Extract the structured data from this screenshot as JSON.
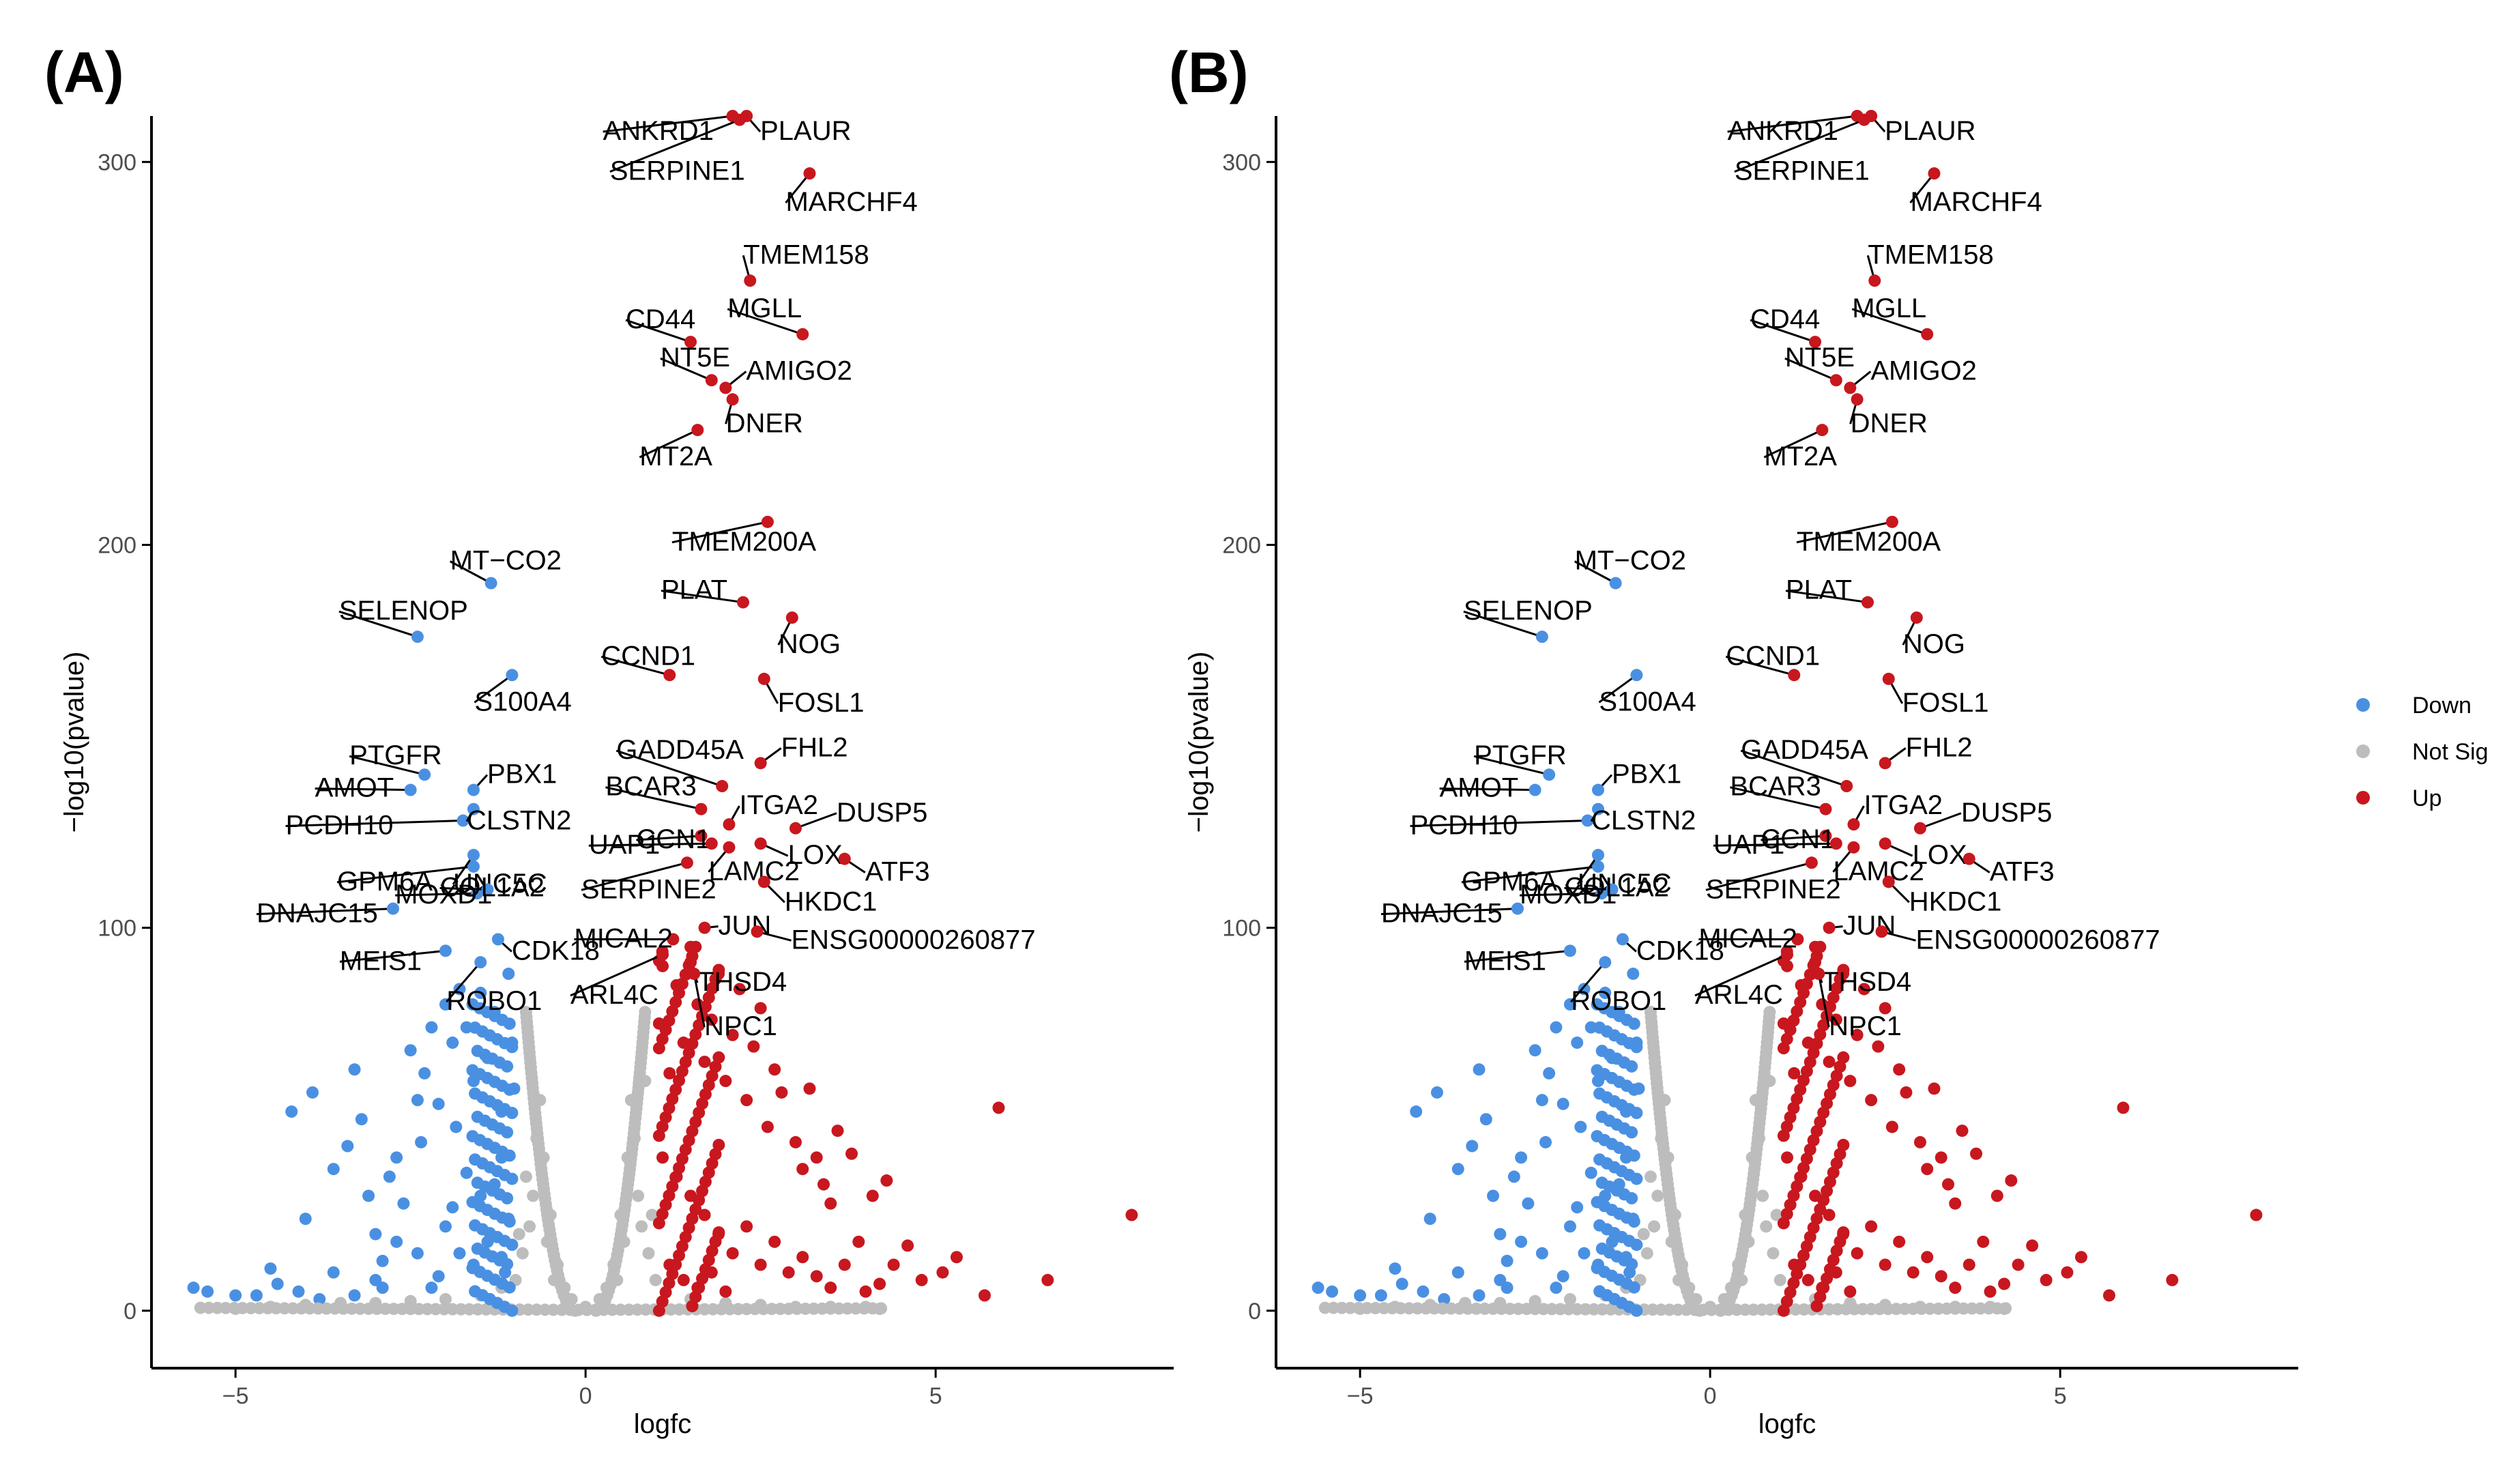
{
  "colors": {
    "down": "#4a90e2",
    "notsig": "#bdbdbd",
    "up": "#c8171e",
    "axis": "#000000",
    "tick_text": "#4d4d4d"
  },
  "legend": {
    "items": [
      {
        "label": "Down",
        "color": "#4a90e2"
      },
      {
        "label": "Not Sig",
        "color": "#bdbdbd"
      },
      {
        "label": "Up",
        "color": "#c8171e"
      }
    ]
  },
  "chart_data": [
    {
      "type": "scatter",
      "panel_label": "(A)",
      "xlabel": "logfc",
      "ylabel": "−log10(pvalue)",
      "xlim": [
        -6.2,
        8.4
      ],
      "ylim": [
        -15,
        312
      ],
      "xticks": [
        -5,
        0,
        5
      ],
      "xtick_labels": [
        "−5",
        "0",
        "5"
      ],
      "yticks": [
        0,
        100,
        200,
        300
      ],
      "ytick_labels": [
        "0",
        "100",
        "200",
        "300"
      ],
      "grid": false,
      "legend_position": "right",
      "categories": [
        "Down",
        "Not Sig",
        "Up"
      ],
      "labeled_points": [
        {
          "gene": "ANKRD1",
          "x": 2.1,
          "y": 312,
          "group": "Up"
        },
        {
          "gene": "PLAUR",
          "x": 2.3,
          "y": 312,
          "group": "Up"
        },
        {
          "gene": "SERPINE1",
          "x": 2.2,
          "y": 311,
          "group": "Up"
        },
        {
          "gene": "MARCHF4",
          "x": 3.2,
          "y": 297,
          "group": "Up"
        },
        {
          "gene": "TMEM158",
          "x": 2.35,
          "y": 269,
          "group": "Up"
        },
        {
          "gene": "MGLL",
          "x": 3.1,
          "y": 255,
          "group": "Up"
        },
        {
          "gene": "CD44",
          "x": 1.5,
          "y": 253,
          "group": "Up"
        },
        {
          "gene": "NT5E",
          "x": 1.8,
          "y": 243,
          "group": "Up"
        },
        {
          "gene": "AMIGO2",
          "x": 2.0,
          "y": 241,
          "group": "Up"
        },
        {
          "gene": "DNER",
          "x": 2.1,
          "y": 238,
          "group": "Up"
        },
        {
          "gene": "MT2A",
          "x": 1.6,
          "y": 230,
          "group": "Up"
        },
        {
          "gene": "TMEM200A",
          "x": 2.6,
          "y": 206,
          "group": "Up"
        },
        {
          "gene": "MT−CO2",
          "x": -1.35,
          "y": 190,
          "group": "Down"
        },
        {
          "gene": "PLAT",
          "x": 2.25,
          "y": 185,
          "group": "Up"
        },
        {
          "gene": "NOG",
          "x": 2.95,
          "y": 181,
          "group": "Up"
        },
        {
          "gene": "SELENOP",
          "x": -2.4,
          "y": 176,
          "group": "Down"
        },
        {
          "gene": "CCND1",
          "x": 1.2,
          "y": 166,
          "group": "Up"
        },
        {
          "gene": "S100A4",
          "x": -1.05,
          "y": 166,
          "group": "Down"
        },
        {
          "gene": "FOSL1",
          "x": 2.55,
          "y": 165,
          "group": "Up"
        },
        {
          "gene": "GADD45A",
          "x": 1.95,
          "y": 137,
          "group": "Up"
        },
        {
          "gene": "FHL2",
          "x": 2.5,
          "y": 143,
          "group": "Up"
        },
        {
          "gene": "PTGFR",
          "x": -2.3,
          "y": 140,
          "group": "Down"
        },
        {
          "gene": "PBX1",
          "x": -1.6,
          "y": 136,
          "group": "Down"
        },
        {
          "gene": "AMOT",
          "x": -2.5,
          "y": 136,
          "group": "Down"
        },
        {
          "gene": "BCAR3",
          "x": 1.65,
          "y": 131,
          "group": "Up"
        },
        {
          "gene": "ITGA2",
          "x": 2.05,
          "y": 127,
          "group": "Up"
        },
        {
          "gene": "DUSP5",
          "x": 3.0,
          "y": 126,
          "group": "Up"
        },
        {
          "gene": "CCN1",
          "x": 1.65,
          "y": 124,
          "group": "Up"
        },
        {
          "gene": "PCDH10",
          "x": -1.75,
          "y": 128,
          "group": "Down"
        },
        {
          "gene": "CLSTN2",
          "x": -1.6,
          "y": 131,
          "group": "Down"
        },
        {
          "gene": "UAP1",
          "x": 1.8,
          "y": 122,
          "group": "Up"
        },
        {
          "gene": "LAMC2",
          "x": 2.05,
          "y": 121,
          "group": "Up"
        },
        {
          "gene": "LOX",
          "x": 2.5,
          "y": 122,
          "group": "Up"
        },
        {
          "gene": "ATF3",
          "x": 3.7,
          "y": 118,
          "group": "Up"
        },
        {
          "gene": "GPM6A",
          "x": -1.6,
          "y": 116,
          "group": "Down"
        },
        {
          "gene": "UNC5C",
          "x": -1.6,
          "y": 119,
          "group": "Down"
        },
        {
          "gene": "SERPINE2",
          "x": 1.45,
          "y": 117,
          "group": "Up"
        },
        {
          "gene": "HKDC1",
          "x": 2.55,
          "y": 112,
          "group": "Up"
        },
        {
          "gene": "DNAJC15",
          "x": -2.75,
          "y": 105,
          "group": "Down"
        },
        {
          "gene": "MOXD1",
          "x": -1.55,
          "y": 109,
          "group": "Down"
        },
        {
          "gene": "COL1A2",
          "x": -1.4,
          "y": 110,
          "group": "Down"
        },
        {
          "gene": "MICAL2",
          "x": 1.25,
          "y": 97,
          "group": "Up"
        },
        {
          "gene": "JUN",
          "x": 1.7,
          "y": 100,
          "group": "Up"
        },
        {
          "gene": "ENSG00000260877",
          "x": 2.45,
          "y": 99,
          "group": "Up"
        },
        {
          "gene": "MEIS1",
          "x": -2.0,
          "y": 94,
          "group": "Down"
        },
        {
          "gene": "CDK18",
          "x": -1.25,
          "y": 97,
          "group": "Down"
        },
        {
          "gene": "THSD4",
          "x": 1.5,
          "y": 91,
          "group": "Up"
        },
        {
          "gene": "ROBO1",
          "x": -1.5,
          "y": 91,
          "group": "Down"
        },
        {
          "gene": "ARL4C",
          "x": 1.1,
          "y": 93,
          "group": "Up"
        },
        {
          "gene": "NPC1",
          "x": 1.55,
          "y": 88,
          "group": "Up"
        }
      ],
      "background_points": {
        "Down": [
          [
            -5.6,
            6
          ],
          [
            -5.4,
            5
          ],
          [
            -5.0,
            4
          ],
          [
            -4.7,
            4
          ],
          [
            -4.5,
            11
          ],
          [
            -4.4,
            7
          ],
          [
            -4.2,
            52
          ],
          [
            -4.1,
            5
          ],
          [
            -4.0,
            24
          ],
          [
            -3.9,
            57
          ],
          [
            -3.6,
            37
          ],
          [
            -3.4,
            43
          ],
          [
            -3.3,
            63
          ],
          [
            -3.2,
            50
          ],
          [
            -3.1,
            30
          ],
          [
            -3.0,
            20
          ],
          [
            -2.9,
            13
          ],
          [
            -2.8,
            35
          ],
          [
            -2.7,
            40
          ],
          [
            -2.6,
            28
          ],
          [
            -2.5,
            68
          ],
          [
            -2.4,
            55
          ],
          [
            -2.35,
            44
          ],
          [
            -2.3,
            62
          ],
          [
            -2.2,
            74
          ],
          [
            -2.1,
            54
          ],
          [
            -2.0,
            80
          ],
          [
            -1.9,
            70
          ],
          [
            -1.85,
            48
          ],
          [
            -1.8,
            84
          ],
          [
            -1.7,
            74
          ],
          [
            -1.6,
            60
          ],
          [
            -1.5,
            83
          ],
          [
            -1.4,
            66
          ],
          [
            -1.3,
            78
          ],
          [
            -1.2,
            52
          ],
          [
            -1.1,
            88
          ],
          [
            -1.05,
            70
          ],
          [
            -1.02,
            58
          ],
          [
            -3.6,
            10
          ],
          [
            -3.0,
            8
          ],
          [
            -2.4,
            15
          ],
          [
            -2.0,
            22
          ],
          [
            -1.5,
            30
          ],
          [
            -1.2,
            40
          ],
          [
            -2.7,
            18
          ],
          [
            -1.7,
            36
          ],
          [
            -1.3,
            33
          ],
          [
            -1.9,
            27
          ],
          [
            -1.1,
            24
          ],
          [
            -3.8,
            3
          ],
          [
            -3.3,
            4
          ],
          [
            -2.2,
            6
          ],
          [
            -1.6,
            12
          ],
          [
            -1.2,
            14
          ],
          [
            -2.9,
            6
          ],
          [
            -2.1,
            9
          ],
          [
            -1.4,
            18
          ],
          [
            -1.8,
            15
          ],
          [
            -1.15,
            10
          ]
        ],
        "Up": [
          [
            1.05,
            75
          ],
          [
            1.1,
            90
          ],
          [
            1.2,
            62
          ],
          [
            1.3,
            85
          ],
          [
            1.4,
            70
          ],
          [
            1.5,
            95
          ],
          [
            1.6,
            80
          ],
          [
            1.7,
            65
          ],
          [
            1.8,
            76
          ],
          [
            1.9,
            88
          ],
          [
            2.0,
            60
          ],
          [
            2.1,
            72
          ],
          [
            2.2,
            84
          ],
          [
            2.3,
            55
          ],
          [
            2.4,
            69
          ],
          [
            2.5,
            79
          ],
          [
            2.6,
            48
          ],
          [
            2.7,
            63
          ],
          [
            2.8,
            57
          ],
          [
            3.0,
            44
          ],
          [
            3.1,
            37
          ],
          [
            3.2,
            58
          ],
          [
            3.3,
            40
          ],
          [
            3.4,
            33
          ],
          [
            3.5,
            28
          ],
          [
            3.6,
            47
          ],
          [
            3.8,
            41
          ],
          [
            3.9,
            18
          ],
          [
            4.1,
            30
          ],
          [
            4.3,
            34
          ],
          [
            4.4,
            12
          ],
          [
            4.6,
            17
          ],
          [
            4.8,
            8
          ],
          [
            5.1,
            10
          ],
          [
            5.3,
            14
          ],
          [
            5.7,
            4
          ],
          [
            5.9,
            53
          ],
          [
            6.6,
            8
          ],
          [
            7.8,
            25
          ],
          [
            1.1,
            40
          ],
          [
            1.3,
            35
          ],
          [
            1.5,
            30
          ],
          [
            1.7,
            25
          ],
          [
            1.9,
            20
          ],
          [
            2.1,
            15
          ],
          [
            2.3,
            22
          ],
          [
            2.5,
            12
          ],
          [
            2.7,
            18
          ],
          [
            2.9,
            10
          ],
          [
            3.1,
            14
          ],
          [
            3.3,
            9
          ],
          [
            3.5,
            6
          ],
          [
            3.7,
            12
          ],
          [
            4.0,
            5
          ],
          [
            4.2,
            7
          ],
          [
            1.2,
            12
          ],
          [
            1.4,
            8
          ],
          [
            1.6,
            6
          ],
          [
            1.8,
            10
          ],
          [
            2.0,
            5
          ]
        ],
        "NotSig": [
          [
            -4.5,
            1
          ],
          [
            -4,
            1.5
          ],
          [
            -3.5,
            2
          ],
          [
            -3,
            2
          ],
          [
            -2.5,
            2.5
          ],
          [
            -2,
            3
          ],
          [
            -1.5,
            4
          ],
          [
            -1.2,
            6
          ],
          [
            -1,
            8
          ],
          [
            -0.9,
            15
          ],
          [
            -0.8,
            22
          ],
          [
            -0.75,
            30
          ],
          [
            -0.7,
            45
          ],
          [
            -0.65,
            55
          ],
          [
            -0.6,
            40
          ],
          [
            -0.5,
            25
          ],
          [
            -0.4,
            12
          ],
          [
            -0.3,
            6
          ],
          [
            -0.2,
            3
          ],
          [
            0,
            1
          ],
          [
            0.2,
            3
          ],
          [
            0.3,
            6
          ],
          [
            0.4,
            12
          ],
          [
            0.5,
            25
          ],
          [
            0.6,
            40
          ],
          [
            0.65,
            55
          ],
          [
            0.7,
            45
          ],
          [
            0.75,
            30
          ],
          [
            0.8,
            22
          ],
          [
            0.85,
            60
          ],
          [
            0.9,
            15
          ],
          [
            1,
            8
          ],
          [
            1.5,
            3
          ],
          [
            2,
            2
          ],
          [
            2.5,
            1.5
          ],
          [
            3,
            1
          ],
          [
            3.5,
            1
          ],
          [
            4,
            1
          ],
          [
            -0.85,
            35
          ],
          [
            -0.95,
            20
          ],
          [
            0.95,
            25
          ],
          [
            -0.55,
            18
          ],
          [
            0.55,
            18
          ],
          [
            -0.45,
            8
          ],
          [
            0.45,
            8
          ],
          [
            -3.8,
            1
          ],
          [
            4.2,
            0.5
          ],
          [
            -5,
            0.5
          ]
        ]
      }
    },
    {
      "type": "scatter",
      "panel_label": "(B)",
      "xlabel": "logfc",
      "ylabel": "−log10(pvalue)",
      "xlim": [
        -6.2,
        8.4
      ],
      "ylim": [
        -15,
        312
      ],
      "xticks": [
        -5,
        0,
        5
      ],
      "xtick_labels": [
        "−5",
        "0",
        "5"
      ],
      "yticks": [
        0,
        100,
        200,
        300
      ],
      "ytick_labels": [
        "0",
        "100",
        "200",
        "300"
      ],
      "grid": false,
      "legend_position": "right",
      "same_as_panel": 0
    }
  ]
}
